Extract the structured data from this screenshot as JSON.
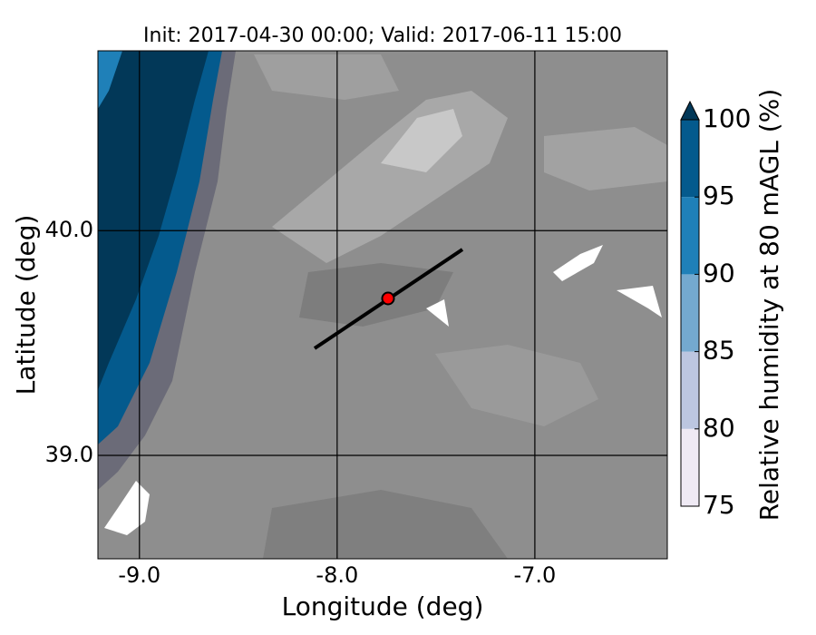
{
  "map": {
    "title": "Init: 2017-04-30 00:00; Valid: 2017-06-11 15:00",
    "xlabel": "Longitude (deg)",
    "ylabel": "Latitude (deg)",
    "xlim": [
      -9.21,
      -6.33
    ],
    "ylim": [
      38.54,
      40.8
    ],
    "xticks": [
      {
        "value": -9,
        "label": "-9.0"
      },
      {
        "value": -8,
        "label": "-8.0"
      },
      {
        "value": -7,
        "label": "-7.0"
      }
    ],
    "yticks": [
      {
        "value": 39,
        "label": "39.0"
      },
      {
        "value": 40,
        "label": "40.0"
      }
    ],
    "colorbar": {
      "label": "Relative humidity at 80 mAGL (%)",
      "ticks": [
        75,
        80,
        85,
        90,
        95,
        100
      ],
      "colors": [
        "#efeaf4",
        "#bcc6e0",
        "#74a9cf",
        "#1f80b8",
        "#045a8d"
      ],
      "extend_color": "#023858"
    }
  }
}
